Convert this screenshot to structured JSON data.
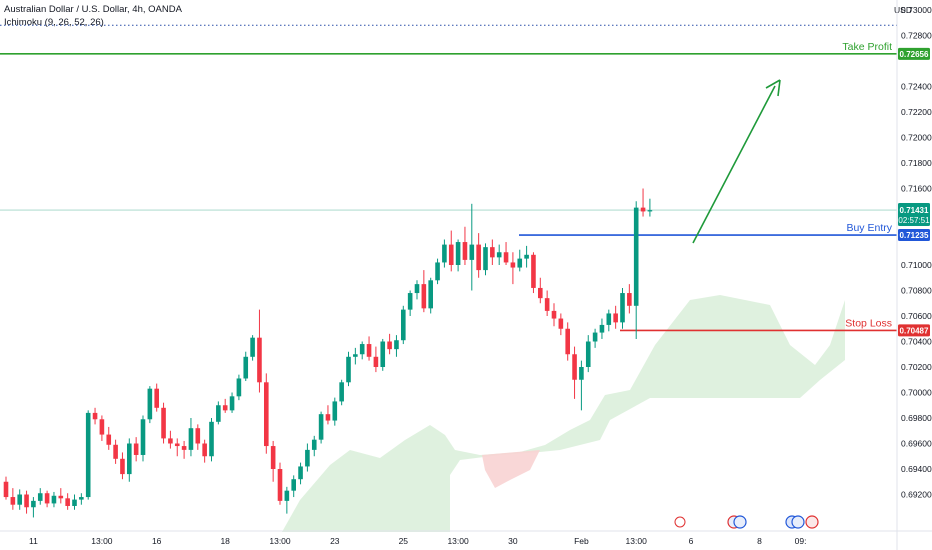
{
  "header": {
    "title": "Australian Dollar / U.S. Dollar, 4h, OANDA",
    "indicator": "Ichimoku (9, 26, 52, 26)"
  },
  "price_axis_currency": "USD",
  "colors": {
    "bull": "#089981",
    "bear": "#f23645",
    "cloud_bull": "#d9eed9",
    "cloud_bear": "#f8d3d3",
    "take_profit": "#2fa12f",
    "buy_entry": "#2157d8",
    "stop_loss": "#e03131",
    "arrow": "#1f9a3a",
    "dotted": "#2a4fa8"
  },
  "chart_data": {
    "type": "candlestick",
    "symbol": "AUDUSD",
    "timeframe": "4h",
    "y_ticks": [
      "0.73000",
      "0.72800",
      "0.72400",
      "0.72200",
      "0.72000",
      "0.71800",
      "0.71600",
      "0.71000",
      "0.70800",
      "0.70600",
      "0.70400",
      "0.70200",
      "0.70000",
      "0.69800",
      "0.69600",
      "0.69400",
      "0.69200"
    ],
    "x_ticks": [
      {
        "label": "11",
        "bar": 4
      },
      {
        "label": "13:00",
        "bar": 14
      },
      {
        "label": "16",
        "bar": 22
      },
      {
        "label": "18",
        "bar": 32
      },
      {
        "label": "13:00",
        "bar": 40
      },
      {
        "label": "23",
        "bar": 48
      },
      {
        "label": "25",
        "bar": 58
      },
      {
        "label": "13:00",
        "bar": 66
      },
      {
        "label": "30",
        "bar": 74
      },
      {
        "label": "Feb",
        "bar": 84
      },
      {
        "label": "13:00",
        "bar": 92
      },
      {
        "label": "6",
        "bar": 100
      },
      {
        "label": "8",
        "bar": 110
      },
      {
        "label": "09:",
        "bar": 116
      }
    ],
    "current_price": {
      "value": "0.71431",
      "countdown": "02:57:51"
    },
    "levels": [
      {
        "name": "Take Profit",
        "value": 0.72656,
        "tag": "0.72656",
        "key": "take_profit"
      },
      {
        "name": "Buy Entry",
        "value": 0.71235,
        "tag": "0.71235",
        "key": "buy_entry"
      },
      {
        "name": "Stop Loss",
        "value": 0.70487,
        "tag": "0.70487",
        "key": "stop_loss"
      }
    ],
    "dotted_level": 0.7288,
    "ohlc": [
      [
        0.693,
        0.6934,
        0.6916,
        0.6918
      ],
      [
        0.6918,
        0.6925,
        0.6908,
        0.6912
      ],
      [
        0.6912,
        0.6924,
        0.6908,
        0.692
      ],
      [
        0.692,
        0.6923,
        0.6905,
        0.691
      ],
      [
        0.691,
        0.6918,
        0.6902,
        0.6915
      ],
      [
        0.6915,
        0.6925,
        0.6912,
        0.6921
      ],
      [
        0.6921,
        0.6923,
        0.691,
        0.6913
      ],
      [
        0.6913,
        0.6922,
        0.691,
        0.6919
      ],
      [
        0.6919,
        0.6925,
        0.6913,
        0.6917
      ],
      [
        0.6917,
        0.6921,
        0.6908,
        0.6911
      ],
      [
        0.6911,
        0.692,
        0.6908,
        0.6916
      ],
      [
        0.6916,
        0.6921,
        0.6912,
        0.6918
      ],
      [
        0.6918,
        0.6986,
        0.6916,
        0.6984
      ],
      [
        0.6984,
        0.6988,
        0.6975,
        0.6979
      ],
      [
        0.6979,
        0.6982,
        0.6962,
        0.6967
      ],
      [
        0.6967,
        0.6973,
        0.6955,
        0.6959
      ],
      [
        0.6959,
        0.6963,
        0.6944,
        0.6948
      ],
      [
        0.6948,
        0.6953,
        0.6932,
        0.6936
      ],
      [
        0.6936,
        0.6964,
        0.693,
        0.696
      ],
      [
        0.696,
        0.6965,
        0.6946,
        0.6951
      ],
      [
        0.6951,
        0.6982,
        0.6946,
        0.6979
      ],
      [
        0.6979,
        0.7005,
        0.6976,
        0.7003
      ],
      [
        0.7003,
        0.7007,
        0.6985,
        0.6988
      ],
      [
        0.6988,
        0.6992,
        0.696,
        0.6964
      ],
      [
        0.6964,
        0.697,
        0.6956,
        0.696
      ],
      [
        0.696,
        0.6964,
        0.695,
        0.6958
      ],
      [
        0.6958,
        0.6962,
        0.6948,
        0.6955
      ],
      [
        0.6955,
        0.698,
        0.695,
        0.6972
      ],
      [
        0.6972,
        0.6975,
        0.6955,
        0.696
      ],
      [
        0.696,
        0.6963,
        0.6945,
        0.695
      ],
      [
        0.695,
        0.698,
        0.6946,
        0.6977
      ],
      [
        0.6977,
        0.6993,
        0.6975,
        0.699
      ],
      [
        0.699,
        0.6995,
        0.6984,
        0.6986
      ],
      [
        0.6986,
        0.7,
        0.6984,
        0.6997
      ],
      [
        0.6997,
        0.7014,
        0.6994,
        0.7011
      ],
      [
        0.7011,
        0.7032,
        0.7009,
        0.7028
      ],
      [
        0.7028,
        0.7045,
        0.7025,
        0.7043
      ],
      [
        0.7043,
        0.7065,
        0.7,
        0.7008
      ],
      [
        0.7008,
        0.7015,
        0.6952,
        0.6958
      ],
      [
        0.6958,
        0.6962,
        0.693,
        0.694
      ],
      [
        0.694,
        0.6945,
        0.6912,
        0.6915
      ],
      [
        0.6915,
        0.6926,
        0.6905,
        0.6923
      ],
      [
        0.6923,
        0.6935,
        0.6918,
        0.6932
      ],
      [
        0.6932,
        0.6945,
        0.6928,
        0.6942
      ],
      [
        0.6942,
        0.696,
        0.6938,
        0.6955
      ],
      [
        0.6955,
        0.6966,
        0.695,
        0.6963
      ],
      [
        0.6963,
        0.6985,
        0.696,
        0.6983
      ],
      [
        0.6983,
        0.699,
        0.6975,
        0.6978
      ],
      [
        0.6978,
        0.6996,
        0.6974,
        0.6993
      ],
      [
        0.6993,
        0.701,
        0.699,
        0.7008
      ],
      [
        0.7008,
        0.7032,
        0.7005,
        0.7028
      ],
      [
        0.7028,
        0.7035,
        0.7022,
        0.703
      ],
      [
        0.703,
        0.704,
        0.7026,
        0.7038
      ],
      [
        0.7038,
        0.7044,
        0.7025,
        0.7028
      ],
      [
        0.7028,
        0.7036,
        0.7016,
        0.702
      ],
      [
        0.702,
        0.7042,
        0.7017,
        0.704
      ],
      [
        0.704,
        0.7046,
        0.703,
        0.7034
      ],
      [
        0.7034,
        0.7045,
        0.7028,
        0.7041
      ],
      [
        0.7041,
        0.7068,
        0.7038,
        0.7065
      ],
      [
        0.7065,
        0.708,
        0.706,
        0.7078
      ],
      [
        0.7078,
        0.7088,
        0.7073,
        0.7085
      ],
      [
        0.7085,
        0.7096,
        0.7063,
        0.7066
      ],
      [
        0.7066,
        0.709,
        0.7062,
        0.7088
      ],
      [
        0.7088,
        0.7105,
        0.7085,
        0.7102
      ],
      [
        0.7102,
        0.712,
        0.7098,
        0.7116
      ],
      [
        0.7116,
        0.7127,
        0.7095,
        0.71
      ],
      [
        0.71,
        0.712,
        0.7095,
        0.7118
      ],
      [
        0.7118,
        0.713,
        0.71,
        0.7104
      ],
      [
        0.7104,
        0.7148,
        0.708,
        0.7116
      ],
      [
        0.7116,
        0.7125,
        0.709,
        0.7096
      ],
      [
        0.7096,
        0.7117,
        0.7092,
        0.7114
      ],
      [
        0.7114,
        0.712,
        0.71,
        0.7106
      ],
      [
        0.7106,
        0.7116,
        0.71,
        0.711
      ],
      [
        0.711,
        0.7118,
        0.71,
        0.7102
      ],
      [
        0.7102,
        0.711,
        0.7085,
        0.7098
      ],
      [
        0.7098,
        0.7112,
        0.7095,
        0.7105
      ],
      [
        0.7105,
        0.7115,
        0.7098,
        0.7108
      ],
      [
        0.7108,
        0.711,
        0.7078,
        0.7082
      ],
      [
        0.7082,
        0.709,
        0.707,
        0.7074
      ],
      [
        0.7074,
        0.708,
        0.706,
        0.7064
      ],
      [
        0.7064,
        0.707,
        0.7052,
        0.7058
      ],
      [
        0.7058,
        0.7062,
        0.7045,
        0.705
      ],
      [
        0.705,
        0.7055,
        0.7025,
        0.703
      ],
      [
        0.703,
        0.7036,
        0.6995,
        0.701
      ],
      [
        0.701,
        0.7025,
        0.6986,
        0.702
      ],
      [
        0.702,
        0.7045,
        0.7016,
        0.704
      ],
      [
        0.704,
        0.705,
        0.7035,
        0.7047
      ],
      [
        0.7047,
        0.7058,
        0.7042,
        0.7053
      ],
      [
        0.7053,
        0.7065,
        0.7048,
        0.7062
      ],
      [
        0.7062,
        0.7068,
        0.705,
        0.7055
      ],
      [
        0.7055,
        0.7082,
        0.705,
        0.7078
      ],
      [
        0.7078,
        0.7085,
        0.7062,
        0.7068
      ],
      [
        0.7068,
        0.715,
        0.7042,
        0.7145
      ],
      [
        0.7145,
        0.716,
        0.7138,
        0.7142
      ],
      [
        0.7142,
        0.7152,
        0.7138,
        0.7143
      ]
    ]
  }
}
